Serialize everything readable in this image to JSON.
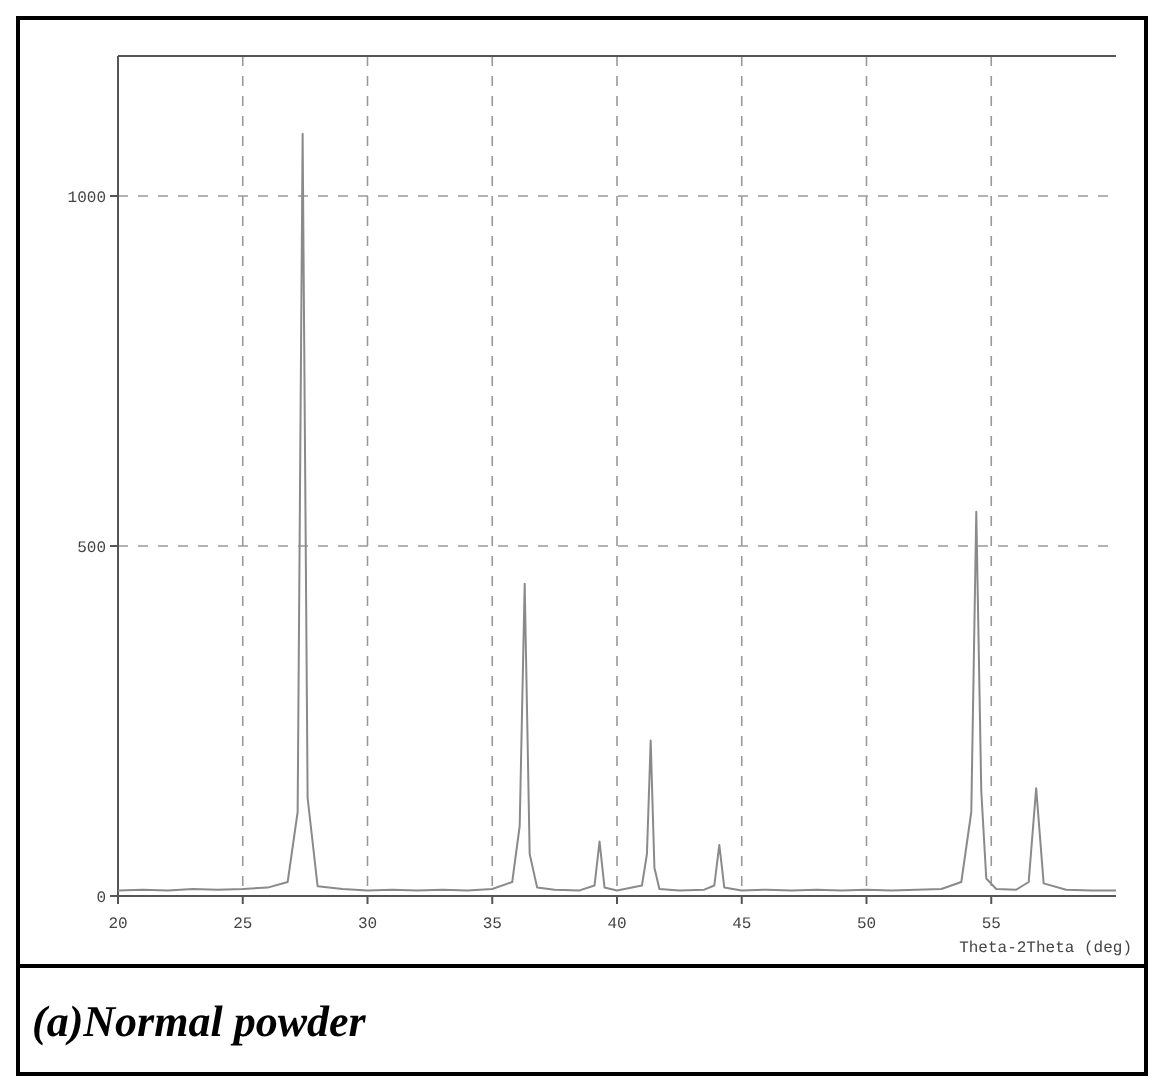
{
  "chart_data": {
    "type": "line",
    "title": "(a)Normal powder",
    "xlabel": "Theta-2Theta (deg)",
    "x": [
      20,
      21,
      22,
      23,
      24,
      25,
      26,
      26.8,
      27.2,
      27.4,
      27.6,
      28,
      29,
      30,
      31,
      32,
      33,
      34,
      35,
      35.8,
      36.1,
      36.3,
      36.5,
      36.8,
      37.5,
      38.5,
      39.1,
      39.3,
      39.5,
      40,
      41.0,
      41.2,
      41.35,
      41.5,
      41.7,
      42.5,
      43.5,
      43.9,
      44.1,
      44.3,
      45,
      46,
      47,
      48,
      49,
      50,
      51,
      52,
      53,
      53.8,
      54.2,
      54.4,
      54.6,
      54.8,
      55.2,
      56,
      56.5,
      56.8,
      57.1,
      58,
      59,
      60
    ],
    "series": [
      {
        "color": "#8a8a8a",
        "values": [
          8,
          9,
          8,
          10,
          9,
          10,
          12,
          20,
          120,
          1089,
          140,
          14,
          10,
          8,
          9,
          8,
          9,
          8,
          10,
          20,
          100,
          446,
          60,
          12,
          9,
          8,
          15,
          78,
          12,
          8,
          15,
          60,
          222,
          40,
          10,
          8,
          9,
          15,
          73,
          12,
          8,
          9,
          8,
          9,
          8,
          9,
          8,
          9,
          10,
          20,
          120,
          549,
          150,
          25,
          10,
          9,
          20,
          154,
          18,
          9,
          8,
          8
        ]
      }
    ],
    "xlim": [
      20,
      60
    ],
    "ylim": [
      0,
      1200
    ],
    "xticks": [
      20,
      25,
      30,
      35,
      40,
      45,
      50,
      55
    ],
    "yticks": [
      0,
      500,
      1000
    ],
    "grid": true,
    "line_style": "solid",
    "marker": "none"
  }
}
